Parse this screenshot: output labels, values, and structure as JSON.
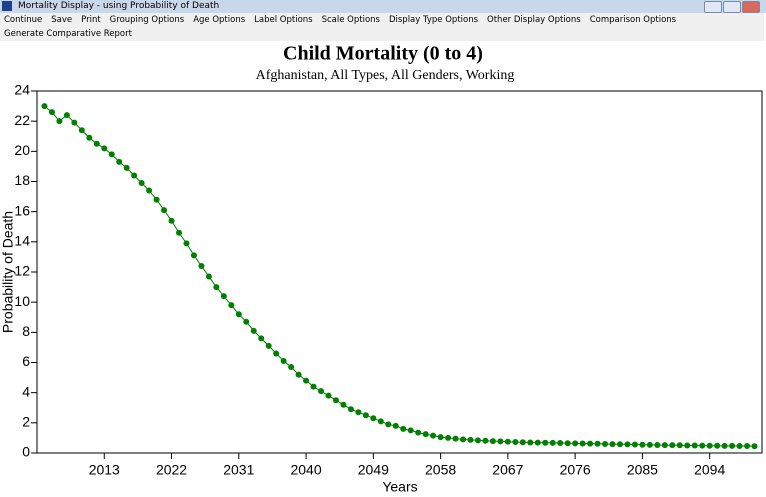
{
  "window": {
    "title": "Mortality Display - using Probability of Death",
    "menu": [
      "Continue",
      "Save",
      "Print",
      "Grouping Options",
      "Age Options",
      "Label Options",
      "Scale Options",
      "Display Type Options",
      "Other Display Options",
      "Comparison Options",
      "Generate Comparative Report"
    ]
  },
  "chart_data": {
    "type": "line",
    "title": "Child Mortality (0 to 4)",
    "subtitle": "Afghanistan, All Types, All Genders, Working",
    "x_label": "Years",
    "y_label": "Probability of Death",
    "x": [
      2005,
      2006,
      2007,
      2008,
      2009,
      2010,
      2011,
      2012,
      2013,
      2014,
      2015,
      2016,
      2017,
      2018,
      2019,
      2020,
      2021,
      2022,
      2023,
      2024,
      2025,
      2026,
      2027,
      2028,
      2029,
      2030,
      2031,
      2032,
      2033,
      2034,
      2035,
      2036,
      2037,
      2038,
      2039,
      2040,
      2041,
      2042,
      2043,
      2044,
      2045,
      2046,
      2047,
      2048,
      2049,
      2050,
      2051,
      2052,
      2053,
      2054,
      2055,
      2056,
      2057,
      2058,
      2059,
      2060,
      2061,
      2062,
      2063,
      2064,
      2065,
      2066,
      2067,
      2068,
      2069,
      2070,
      2071,
      2072,
      2073,
      2074,
      2075,
      2076,
      2077,
      2078,
      2079,
      2080,
      2081,
      2082,
      2083,
      2084,
      2085,
      2086,
      2087,
      2088,
      2089,
      2090,
      2091,
      2092,
      2093,
      2094,
      2095,
      2096,
      2097,
      2098,
      2099,
      2100
    ],
    "series": [
      {
        "name": "Afghanistan",
        "color": "#008000",
        "values": [
          23.0,
          22.6,
          22.0,
          22.4,
          21.9,
          21.4,
          20.9,
          20.5,
          20.2,
          19.8,
          19.3,
          18.9,
          18.4,
          17.9,
          17.4,
          16.8,
          16.1,
          15.4,
          14.6,
          13.9,
          13.1,
          12.4,
          11.7,
          11.0,
          10.4,
          9.8,
          9.2,
          8.7,
          8.1,
          7.6,
          7.1,
          6.6,
          6.1,
          5.7,
          5.2,
          4.8,
          4.4,
          4.1,
          3.8,
          3.5,
          3.2,
          2.9,
          2.7,
          2.5,
          2.3,
          2.1,
          1.9,
          1.8,
          1.6,
          1.5,
          1.35,
          1.25,
          1.15,
          1.05,
          1.0,
          0.95,
          0.9,
          0.87,
          0.84,
          0.81,
          0.79,
          0.77,
          0.75,
          0.73,
          0.71,
          0.7,
          0.69,
          0.68,
          0.67,
          0.66,
          0.65,
          0.64,
          0.63,
          0.62,
          0.61,
          0.6,
          0.59,
          0.58,
          0.57,
          0.56,
          0.55,
          0.54,
          0.53,
          0.52,
          0.52,
          0.51,
          0.5,
          0.5,
          0.49,
          0.48,
          0.48,
          0.47,
          0.47,
          0.46,
          0.46,
          0.45
        ]
      }
    ],
    "xlim": [
      2004,
      2101
    ],
    "ylim": [
      0,
      24
    ],
    "xticks": [
      2013,
      2022,
      2031,
      2040,
      2049,
      2058,
      2067,
      2076,
      2085,
      2094
    ],
    "yticks": [
      0,
      2,
      4,
      6,
      8,
      10,
      12,
      14,
      16,
      18,
      20,
      22,
      24
    ],
    "grid": false
  }
}
